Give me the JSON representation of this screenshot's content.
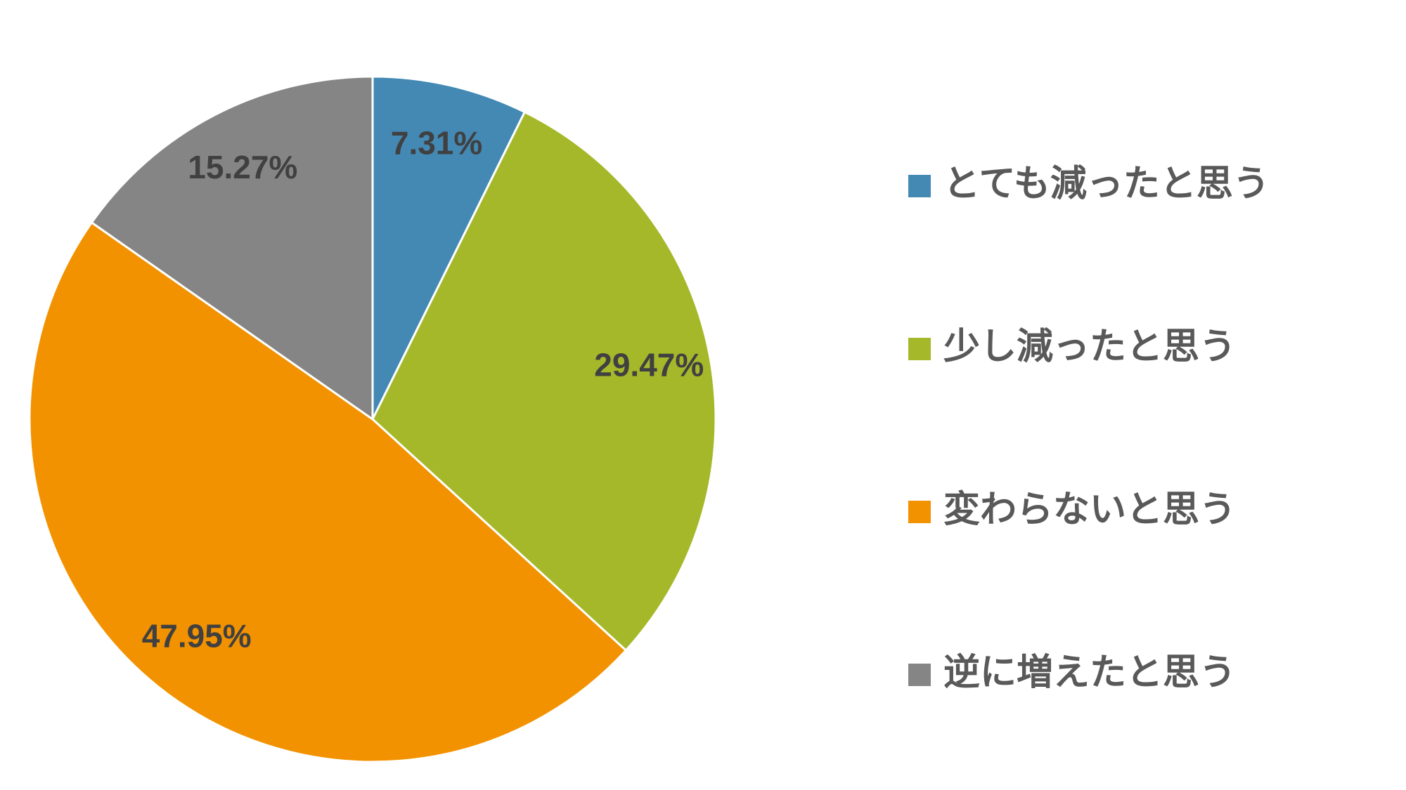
{
  "chart_data": {
    "type": "pie",
    "categories": [
      "とても減ったと思う",
      "少し減ったと思う",
      "変わらないと思う",
      "逆に増えたと思う"
    ],
    "values": [
      7.31,
      29.47,
      47.95,
      15.27
    ],
    "value_labels": [
      "7.31%",
      "29.47%",
      "47.95%",
      "15.27%"
    ],
    "colors": [
      "#4389b4",
      "#a5b82a",
      "#f39200",
      "#858585"
    ],
    "legend": "right"
  }
}
